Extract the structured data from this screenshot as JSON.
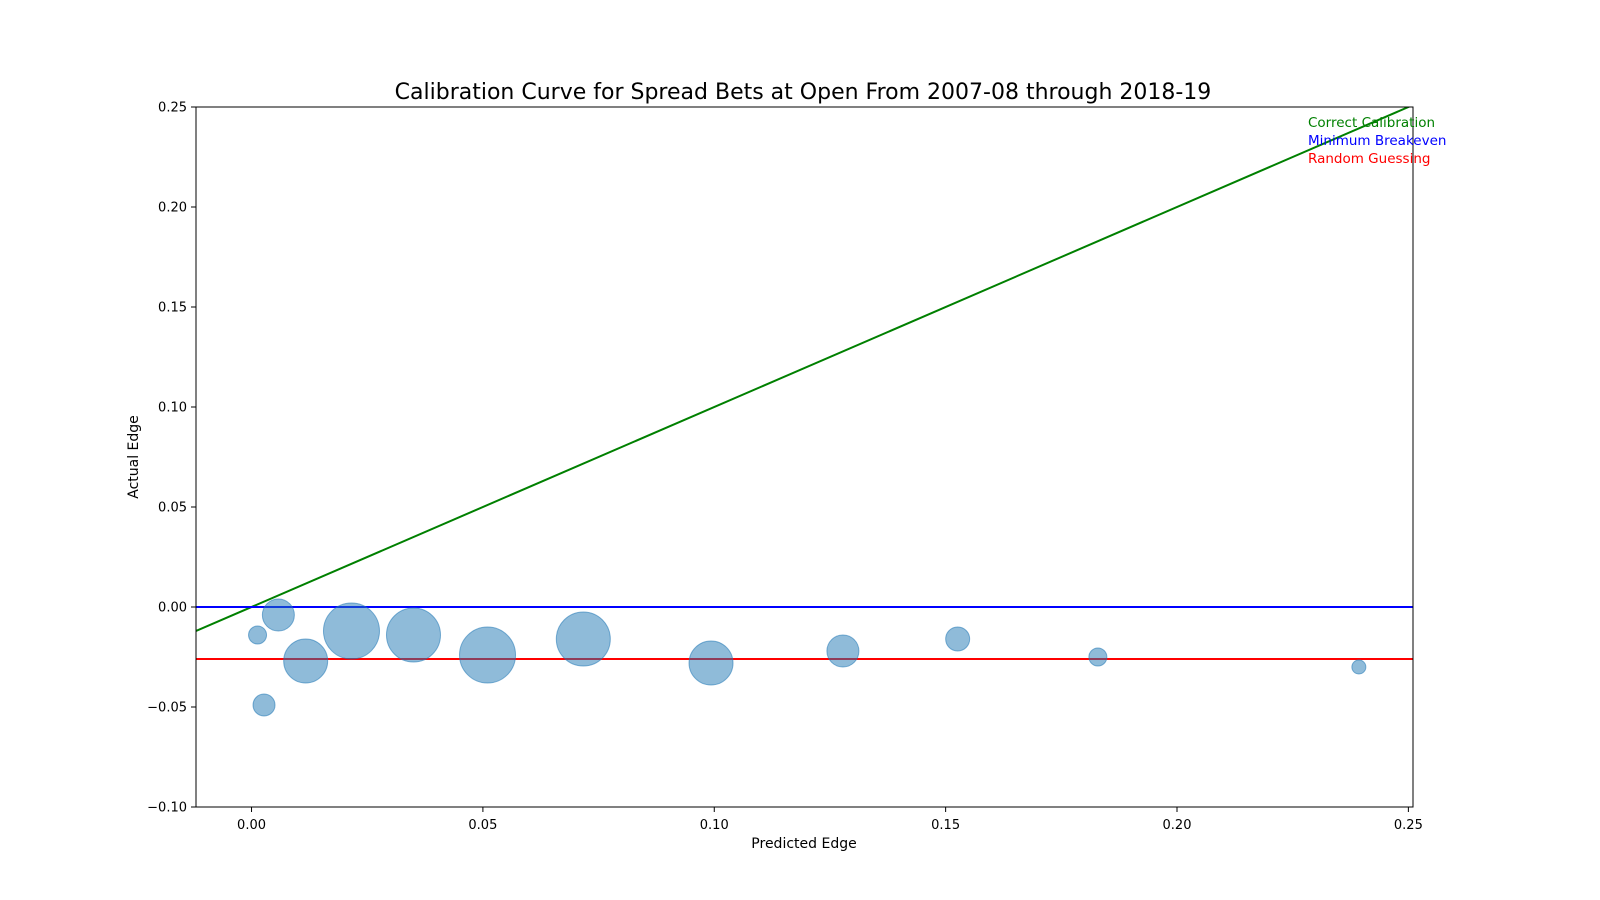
{
  "chart_data": {
    "type": "scatter",
    "title": "Calibration Curve for Spread Bets at Open From 2007-08 through 2018-19",
    "xlabel": "Predicted Edge",
    "ylabel": "Actual Edge",
    "xlim": [
      -0.012,
      0.251
    ],
    "ylim": [
      -0.1,
      0.25
    ],
    "x_ticks": [
      0.0,
      0.05,
      0.1,
      0.15,
      0.2,
      0.25
    ],
    "x_tick_labels": [
      "0.00",
      "0.05",
      "0.10",
      "0.15",
      "0.20",
      "0.25"
    ],
    "y_ticks": [
      -0.1,
      -0.05,
      0.0,
      0.05,
      0.1,
      0.15,
      0.2,
      0.25
    ],
    "y_tick_labels": [
      "−0.10",
      "−0.05",
      "0.00",
      "0.05",
      "0.10",
      "0.15",
      "0.20",
      "0.25"
    ],
    "grid": false,
    "legend_position": "top-right",
    "points": [
      {
        "x": 0.0013,
        "y": -0.014,
        "r": 9
      },
      {
        "x": 0.0027,
        "y": -0.049,
        "r": 11
      },
      {
        "x": 0.0058,
        "y": -0.004,
        "r": 16
      },
      {
        "x": 0.0117,
        "y": -0.027,
        "r": 22
      },
      {
        "x": 0.0216,
        "y": -0.012,
        "r": 28
      },
      {
        "x": 0.035,
        "y": -0.014,
        "r": 27
      },
      {
        "x": 0.051,
        "y": -0.024,
        "r": 28
      },
      {
        "x": 0.0717,
        "y": -0.016,
        "r": 27
      },
      {
        "x": 0.0993,
        "y": -0.028,
        "r": 22
      },
      {
        "x": 0.1278,
        "y": -0.022,
        "r": 16
      },
      {
        "x": 0.1526,
        "y": -0.016,
        "r": 12
      },
      {
        "x": 0.1829,
        "y": -0.025,
        "r": 9
      },
      {
        "x": 0.2393,
        "y": -0.03,
        "r": 7
      }
    ],
    "point_color": "#1f77b4",
    "reference_lines": [
      {
        "name": "Correct Calibration",
        "kind": "identity",
        "color": "#008000"
      },
      {
        "name": "Minimum Breakeven",
        "kind": "horizontal",
        "y": 0.0,
        "color": "#0000ff"
      },
      {
        "name": "Random Guessing",
        "kind": "horizontal",
        "y": -0.026,
        "color": "#ff0000"
      }
    ]
  }
}
